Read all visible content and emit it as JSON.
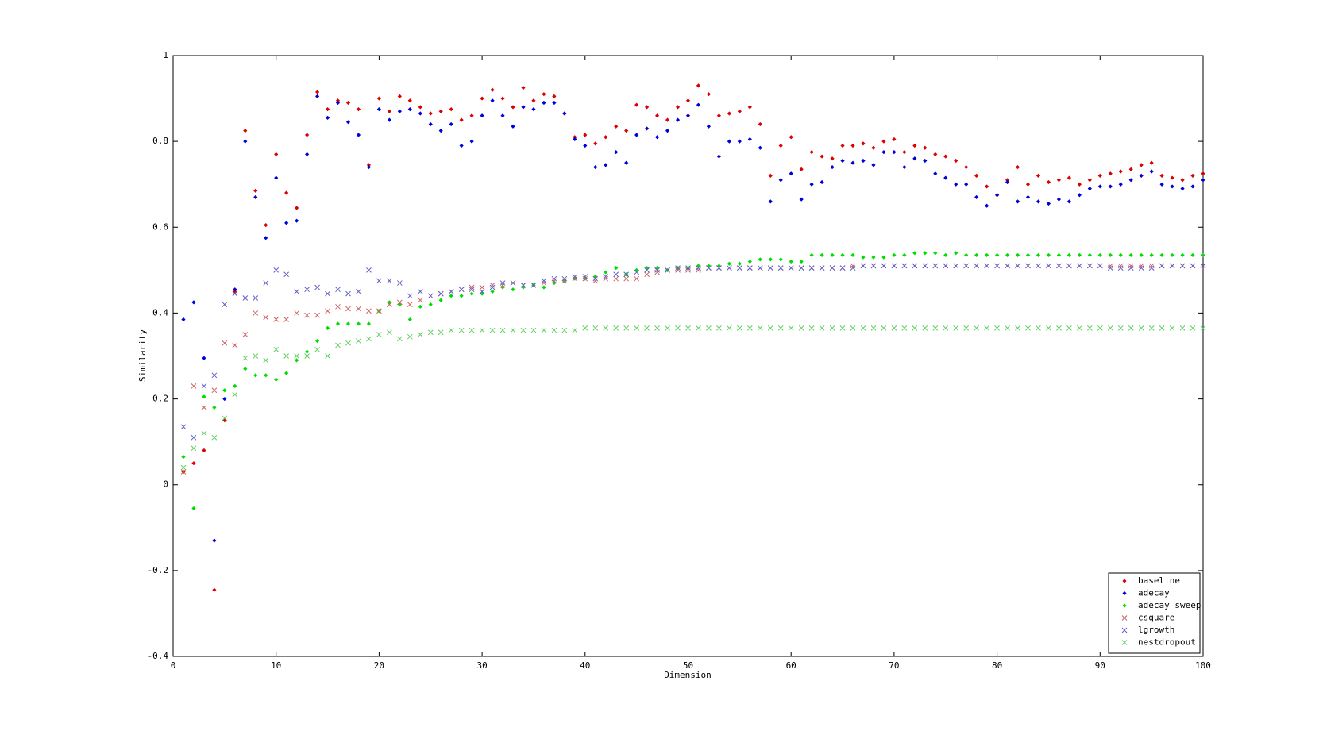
{
  "chart_data": {
    "type": "scatter",
    "xlabel": "Dimension",
    "ylabel": "Similarity",
    "xlim": [
      0,
      100
    ],
    "ylim": [
      -0.4,
      1
    ],
    "xticks": [
      0,
      10,
      20,
      30,
      40,
      50,
      60,
      70,
      80,
      90,
      100
    ],
    "yticks": [
      -0.4,
      -0.2,
      0,
      0.2,
      0.4,
      0.6,
      0.8,
      1
    ],
    "legend": "lower right",
    "x": [
      1,
      2,
      3,
      4,
      5,
      6,
      7,
      8,
      9,
      10,
      11,
      12,
      13,
      14,
      15,
      16,
      17,
      18,
      19,
      20,
      21,
      22,
      23,
      24,
      25,
      26,
      27,
      28,
      29,
      30,
      31,
      32,
      33,
      34,
      35,
      36,
      37,
      38,
      39,
      40,
      41,
      42,
      43,
      44,
      45,
      46,
      47,
      48,
      49,
      50,
      51,
      52,
      53,
      54,
      55,
      56,
      57,
      58,
      59,
      60,
      61,
      62,
      63,
      64,
      65,
      66,
      67,
      68,
      69,
      70,
      71,
      72,
      73,
      74,
      75,
      76,
      77,
      78,
      79,
      80,
      81,
      82,
      83,
      84,
      85,
      86,
      87,
      88,
      89,
      90,
      91,
      92,
      93,
      94,
      95,
      96,
      97,
      98,
      99,
      100
    ],
    "series": [
      {
        "name": "baseline",
        "color": "#dd0000",
        "marker": "dot",
        "values": [
          0.03,
          0.05,
          0.08,
          -0.245,
          0.15,
          0.45,
          0.825,
          0.685,
          0.605,
          0.77,
          0.68,
          0.645,
          0.815,
          0.915,
          0.875,
          0.895,
          0.89,
          0.875,
          0.745,
          0.9,
          0.87,
          0.905,
          0.895,
          0.88,
          0.865,
          0.87,
          0.875,
          0.85,
          0.86,
          0.9,
          0.92,
          0.9,
          0.88,
          0.925,
          0.895,
          0.91,
          0.905,
          0.865,
          0.81,
          0.815,
          0.795,
          0.81,
          0.835,
          0.825,
          0.885,
          0.88,
          0.86,
          0.85,
          0.88,
          0.895,
          0.93,
          0.91,
          0.86,
          0.865,
          0.87,
          0.88,
          0.84,
          0.72,
          0.79,
          0.81,
          0.735,
          0.775,
          0.765,
          0.76,
          0.79,
          0.79,
          0.795,
          0.785,
          0.8,
          0.805,
          0.775,
          0.79,
          0.785,
          0.77,
          0.765,
          0.755,
          0.74,
          0.72,
          0.695,
          0.675,
          0.71,
          0.74,
          0.7,
          0.72,
          0.705,
          0.71,
          0.715,
          0.7,
          0.71,
          0.72,
          0.725,
          0.73,
          0.735,
          0.745,
          0.75,
          0.72,
          0.715,
          0.71,
          0.72,
          0.725
        ]
      },
      {
        "name": "adecay",
        "color": "#0000dd",
        "marker": "dot",
        "values": [
          0.385,
          0.425,
          0.295,
          -0.13,
          0.2,
          0.455,
          0.8,
          0.67,
          0.575,
          0.715,
          0.61,
          0.615,
          0.77,
          0.905,
          0.855,
          0.89,
          0.845,
          0.815,
          0.74,
          0.875,
          0.85,
          0.87,
          0.875,
          0.865,
          0.84,
          0.825,
          0.84,
          0.79,
          0.8,
          0.86,
          0.895,
          0.86,
          0.835,
          0.88,
          0.875,
          0.89,
          0.89,
          0.865,
          0.805,
          0.79,
          0.74,
          0.745,
          0.775,
          0.75,
          0.815,
          0.83,
          0.81,
          0.825,
          0.85,
          0.86,
          0.885,
          0.835,
          0.765,
          0.8,
          0.8,
          0.805,
          0.785,
          0.66,
          0.71,
          0.725,
          0.665,
          0.7,
          0.705,
          0.74,
          0.755,
          0.75,
          0.755,
          0.745,
          0.775,
          0.775,
          0.74,
          0.76,
          0.755,
          0.725,
          0.715,
          0.7,
          0.7,
          0.67,
          0.65,
          0.675,
          0.705,
          0.66,
          0.67,
          0.66,
          0.655,
          0.665,
          0.66,
          0.675,
          0.69,
          0.695,
          0.695,
          0.7,
          0.71,
          0.72,
          0.73,
          0.7,
          0.695,
          0.69,
          0.695,
          0.71
        ]
      },
      {
        "name": "adecay_sweep",
        "color": "#00dd00",
        "marker": "dot",
        "values": [
          0.065,
          -0.055,
          0.205,
          0.18,
          0.22,
          0.23,
          0.27,
          0.255,
          0.255,
          0.245,
          0.26,
          0.29,
          0.31,
          0.335,
          0.365,
          0.375,
          0.375,
          0.375,
          0.375,
          0.405,
          0.425,
          0.42,
          0.385,
          0.415,
          0.42,
          0.43,
          0.44,
          0.44,
          0.445,
          0.445,
          0.45,
          0.46,
          0.455,
          0.46,
          0.465,
          0.46,
          0.47,
          0.475,
          0.48,
          0.48,
          0.485,
          0.495,
          0.505,
          0.49,
          0.5,
          0.505,
          0.505,
          0.5,
          0.505,
          0.505,
          0.51,
          0.51,
          0.51,
          0.515,
          0.515,
          0.52,
          0.525,
          0.525,
          0.525,
          0.52,
          0.52,
          0.535,
          0.535,
          0.535,
          0.535,
          0.535,
          0.53,
          0.53,
          0.53,
          0.535,
          0.535,
          0.54,
          0.54,
          0.54,
          0.535,
          0.54,
          0.535,
          0.535,
          0.535,
          0.535,
          0.535,
          0.535,
          0.535,
          0.535,
          0.535,
          0.535,
          0.535,
          0.535,
          0.535,
          0.535,
          0.535,
          0.535,
          0.535,
          0.535,
          0.535,
          0.535,
          0.535,
          0.535,
          0.535,
          0.535
        ]
      },
      {
        "name": "csquare",
        "color": "#d06060",
        "marker": "x",
        "values": [
          0.03,
          0.23,
          0.18,
          0.22,
          0.33,
          0.325,
          0.35,
          0.4,
          0.39,
          0.385,
          0.385,
          0.4,
          0.395,
          0.395,
          0.405,
          0.415,
          0.41,
          0.41,
          0.405,
          0.405,
          0.42,
          0.425,
          0.42,
          0.43,
          0.44,
          0.445,
          0.45,
          0.455,
          0.46,
          0.46,
          0.465,
          0.465,
          0.47,
          0.465,
          0.465,
          0.47,
          0.475,
          0.475,
          0.48,
          0.48,
          0.475,
          0.48,
          0.48,
          0.48,
          0.48,
          0.49,
          0.495,
          0.5,
          0.5,
          0.5,
          0.5,
          0.505,
          0.505,
          0.505,
          0.505,
          0.505,
          0.505,
          0.505,
          0.505,
          0.505,
          0.505,
          0.505,
          0.505,
          0.505,
          0.505,
          0.51,
          0.51,
          0.51,
          0.51,
          0.51,
          0.51,
          0.51,
          0.51,
          0.51,
          0.51,
          0.51,
          0.51,
          0.51,
          0.51,
          0.51,
          0.51,
          0.51,
          0.51,
          0.51,
          0.51,
          0.51,
          0.51,
          0.51,
          0.51,
          0.51,
          0.51,
          0.51,
          0.51,
          0.51,
          0.51,
          0.51,
          0.51,
          0.51,
          0.51,
          0.51
        ]
      },
      {
        "name": "lgrowth",
        "color": "#6060c8",
        "marker": "x",
        "values": [
          0.135,
          0.11,
          0.23,
          0.255,
          0.42,
          0.445,
          0.435,
          0.435,
          0.47,
          0.5,
          0.49,
          0.45,
          0.455,
          0.46,
          0.445,
          0.455,
          0.445,
          0.45,
          0.5,
          0.475,
          0.475,
          0.47,
          0.44,
          0.45,
          0.44,
          0.445,
          0.45,
          0.455,
          0.455,
          0.45,
          0.46,
          0.47,
          0.47,
          0.465,
          0.465,
          0.475,
          0.48,
          0.48,
          0.485,
          0.485,
          0.48,
          0.485,
          0.49,
          0.49,
          0.495,
          0.5,
          0.5,
          0.5,
          0.505,
          0.505,
          0.505,
          0.505,
          0.505,
          0.505,
          0.505,
          0.505,
          0.505,
          0.505,
          0.505,
          0.505,
          0.505,
          0.505,
          0.505,
          0.505,
          0.505,
          0.505,
          0.51,
          0.51,
          0.51,
          0.51,
          0.51,
          0.51,
          0.51,
          0.51,
          0.51,
          0.51,
          0.51,
          0.51,
          0.51,
          0.51,
          0.51,
          0.51,
          0.51,
          0.51,
          0.51,
          0.51,
          0.51,
          0.51,
          0.51,
          0.51,
          0.505,
          0.505,
          0.505,
          0.505,
          0.505,
          0.51,
          0.51,
          0.51,
          0.51,
          0.51
        ]
      },
      {
        "name": "nestdropout",
        "color": "#60d060",
        "marker": "x",
        "values": [
          0.04,
          0.085,
          0.12,
          0.11,
          0.155,
          0.21,
          0.295,
          0.3,
          0.29,
          0.315,
          0.3,
          0.3,
          0.3,
          0.315,
          0.3,
          0.325,
          0.33,
          0.335,
          0.34,
          0.35,
          0.355,
          0.34,
          0.345,
          0.35,
          0.355,
          0.355,
          0.36,
          0.36,
          0.36,
          0.36,
          0.36,
          0.36,
          0.36,
          0.36,
          0.36,
          0.36,
          0.36,
          0.36,
          0.36,
          0.365,
          0.365,
          0.365,
          0.365,
          0.365,
          0.365,
          0.365,
          0.365,
          0.365,
          0.365,
          0.365,
          0.365,
          0.365,
          0.365,
          0.365,
          0.365,
          0.365,
          0.365,
          0.365,
          0.365,
          0.365,
          0.365,
          0.365,
          0.365,
          0.365,
          0.365,
          0.365,
          0.365,
          0.365,
          0.365,
          0.365,
          0.365,
          0.365,
          0.365,
          0.365,
          0.365,
          0.365,
          0.365,
          0.365,
          0.365,
          0.365,
          0.365,
          0.365,
          0.365,
          0.365,
          0.365,
          0.365,
          0.365,
          0.365,
          0.365,
          0.365,
          0.365,
          0.365,
          0.365,
          0.365,
          0.365,
          0.365,
          0.365,
          0.365,
          0.365,
          0.365
        ]
      }
    ]
  }
}
